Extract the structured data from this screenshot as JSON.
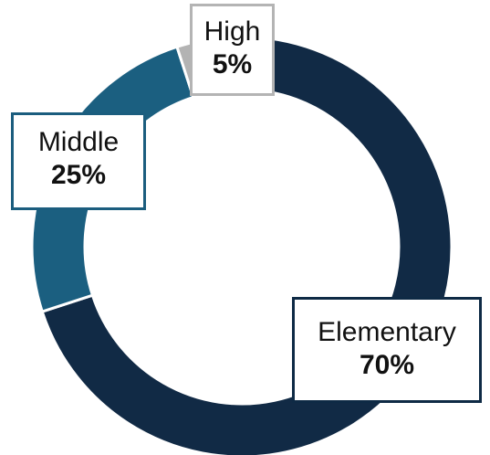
{
  "chart_data": {
    "type": "pie",
    "variant": "donut",
    "categories": [
      "Elementary",
      "Middle",
      "High"
    ],
    "values": [
      70,
      25,
      5
    ],
    "value_labels": [
      "70%",
      "25%",
      "5%"
    ],
    "colors": [
      "#112a45",
      "#1b5f80",
      "#b3b3b3"
    ],
    "legend": "none",
    "labels": {
      "elementary": {
        "name": "Elementary",
        "pct": "70%"
      },
      "middle": {
        "name": "Middle",
        "pct": "25%"
      },
      "high": {
        "name": "High",
        "pct": "5%"
      }
    }
  }
}
